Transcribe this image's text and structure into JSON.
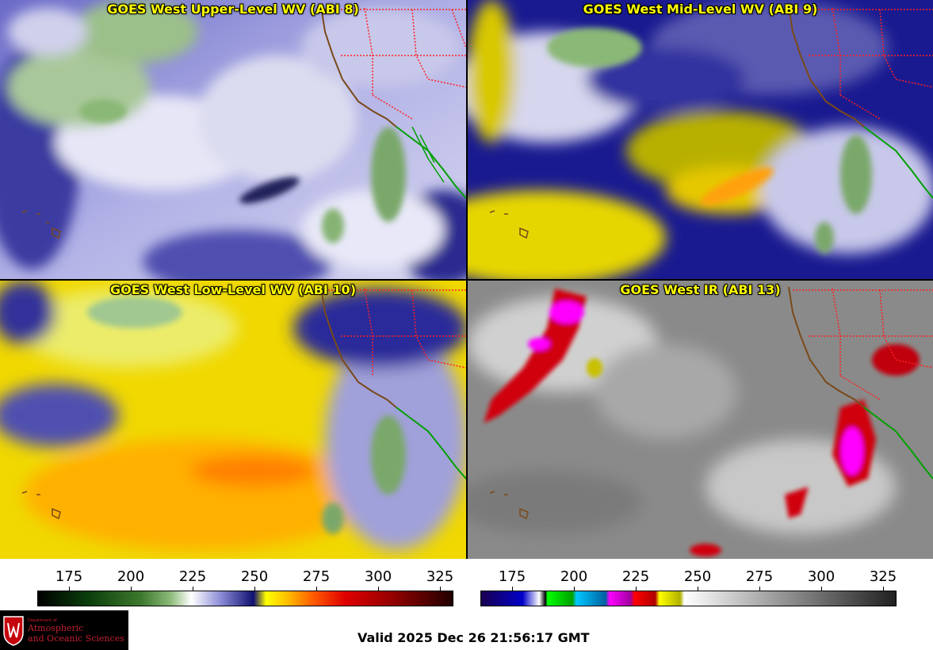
{
  "panels": {
    "upper": {
      "title": "GOES West Upper-Level WV (ABI 8)"
    },
    "mid": {
      "title": "GOES West Mid-Level WV (ABI 9)"
    },
    "low": {
      "title": "GOES West Low-Level WV (ABI 10)"
    },
    "ir": {
      "title": "GOES West IR (ABI 13)"
    }
  },
  "colorbars": {
    "wv": {
      "ticks": [
        "175",
        "200",
        "225",
        "250",
        "275",
        "300",
        "325"
      ]
    },
    "ir": {
      "ticks": [
        "175",
        "200",
        "225",
        "250",
        "275",
        "300",
        "325"
      ]
    }
  },
  "logo": {
    "dept": "Department of",
    "name_line1": "Atmospheric",
    "name_line2": "and Oceanic Sciences"
  },
  "valid_time": "Valid 2025 Dec 26 21:56:17 GMT",
  "colors": {
    "title_yellow": "#ffff00",
    "border_red": "#ff2020",
    "coast_brown": "#7a4a1a",
    "mexico_green": "#00a000"
  }
}
